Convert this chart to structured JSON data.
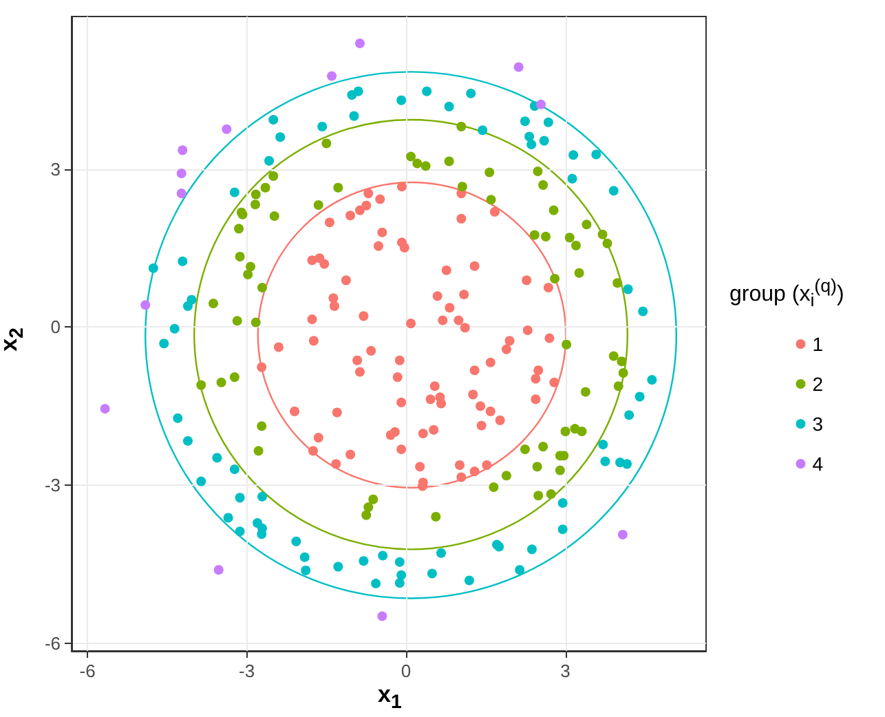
{
  "chart_data": {
    "type": "scatter",
    "xlabel": "x$_{1}$",
    "ylabel": "x$_{2}$",
    "legend_title": "group (x$_{i}$$^{(q)}$)",
    "xlim": [
      -6.3,
      5.65
    ],
    "ylim": [
      -6.15,
      5.9
    ],
    "xticks": [
      -6,
      -3,
      0,
      3
    ],
    "yticks": [
      -6,
      -3,
      0,
      3
    ],
    "grid": true,
    "legend": "right",
    "marker": "circle",
    "series": [
      {
        "name": "1",
        "color": "#f8766d",
        "x": [
          -0.71,
          -0.49,
          -0.75,
          -0.87,
          -1.05,
          -1.44,
          -0.45,
          -0.52,
          -1.77,
          -1.63,
          -1.54,
          -1.13,
          -1.37,
          -1.35,
          -0.08,
          1.04,
          1.67,
          1.04,
          -0.08,
          -0.03,
          0.76,
          1.29,
          2.27,
          2.68,
          0.59,
          1.09,
          0.82,
          -1.77,
          -0.8,
          -1.74,
          -2.4,
          -0.92,
          -0.66,
          -0.87,
          -2.72,
          -2.1,
          -1.3,
          -1.65,
          -1.75,
          -1.05,
          -1.32,
          -0.29,
          0.09,
          0.69,
          0.99,
          1.11,
          2.29,
          2.7,
          1.95,
          1.89,
          1.59,
          -0.12,
          -0.16,
          0.54,
          1.29,
          2.49,
          2.44,
          2.79,
          1.26,
          0.46,
          0.64,
          0.66,
          -0.09,
          2.44,
          1.4,
          1.59,
          1.77,
          1.42,
          -0.21,
          0.32,
          0.52,
          -0.09,
          0.26,
          1.01,
          1.29,
          1.52,
          1.04,
          0.32,
          0.31
        ],
        "values": [
          2.54,
          2.43,
          2.31,
          2.22,
          2.12,
          1.99,
          1.8,
          1.54,
          1.27,
          1.31,
          1.2,
          0.89,
          0.55,
          0.4,
          2.67,
          2.54,
          2.19,
          2.06,
          1.61,
          1.51,
          1.08,
          1.16,
          0.89,
          0.75,
          0.59,
          0.62,
          0.37,
          0.15,
          0.21,
          -0.26,
          -0.38,
          -0.63,
          -0.45,
          -0.85,
          -0.76,
          -1.6,
          -1.62,
          -2.1,
          -2.35,
          -2.42,
          -2.6,
          -2.05,
          0.07,
          0.13,
          0.13,
          -0.01,
          -0.06,
          -0.21,
          -0.26,
          -0.42,
          -0.67,
          -0.63,
          -0.95,
          -1.12,
          -0.82,
          -0.82,
          -0.98,
          -1.05,
          -1.28,
          -1.37,
          -1.33,
          -1.45,
          -1.43,
          -1.37,
          -1.5,
          -1.6,
          -1.77,
          -1.87,
          -1.99,
          -2.02,
          -1.95,
          -2.32,
          -2.65,
          -2.62,
          -2.74,
          -2.62,
          -2.85,
          -2.95,
          -3.02
        ]
      },
      {
        "name": "2",
        "color": "#7cae00",
        "x": [
          -1.5,
          -2.5,
          -2.65,
          -2.83,
          -2.84,
          -3.1,
          -3.08,
          -1.28,
          -1.65,
          -2.48,
          -3.15,
          -3.13,
          -2.93,
          -2.98,
          -2.71,
          -3.63,
          1.04,
          0.09,
          0.21,
          0.37,
          0.81,
          1.57,
          2.48,
          2.58,
          1.06,
          1.6,
          2.78,
          3.4,
          2.42,
          2.63,
          3.08,
          3.2,
          3.7,
          3.79,
          3.26,
          3.98,
          2.8,
          -3.18,
          -2.83,
          -3.86,
          -3.48,
          -3.23,
          -2.72,
          -2.78,
          -0.62,
          -0.71,
          -0.75,
          3.02,
          3.91,
          4.06,
          4.09,
          4.0,
          3.38,
          3.0,
          3.18,
          3.31,
          2.24,
          2.58,
          2.9,
          2.97,
          2.47,
          2.9,
          1.89,
          1.65,
          2.49,
          2.73,
          0.56
        ],
        "values": [
          3.49,
          2.87,
          2.65,
          2.52,
          2.33,
          2.18,
          2.14,
          2.65,
          2.32,
          2.11,
          1.87,
          1.34,
          1.15,
          1.0,
          0.75,
          0.45,
          3.81,
          3.24,
          3.11,
          3.06,
          3.15,
          2.94,
          2.96,
          2.7,
          2.67,
          2.42,
          2.22,
          1.95,
          1.75,
          1.72,
          1.7,
          1.55,
          1.76,
          1.59,
          1.03,
          0.84,
          0.92,
          0.12,
          0.09,
          -1.1,
          -1.05,
          -0.95,
          -1.88,
          -2.35,
          -3.27,
          -3.42,
          -3.57,
          -0.33,
          -0.55,
          -0.65,
          -0.87,
          -1.12,
          -1.23,
          -1.98,
          -1.93,
          -1.98,
          -2.32,
          -2.27,
          -2.44,
          -2.44,
          -2.65,
          -2.72,
          -2.82,
          -3.04,
          -3.2,
          -3.17,
          -3.6
        ]
      },
      {
        "name": "3",
        "color": "#00bfc4",
        "x": [
          -1.02,
          -0.9,
          -0.98,
          -2.5,
          -1.58,
          -2.37,
          -2.58,
          -3.23,
          -4.76,
          -4.21,
          -4.04,
          -4.11,
          -0.09,
          0.39,
          0.81,
          1.22,
          1.44,
          2.42,
          2.24,
          2.68,
          2.32,
          2.36,
          2.6,
          3.15,
          3.58,
          3.13,
          3.91,
          4.18,
          4.46,
          -4.36,
          -4.56,
          -4.3,
          -4.11,
          -3.56,
          -3.23,
          -3.86,
          -3.13,
          -2.71,
          -3.35,
          -3.13,
          -2.8,
          -2.71,
          -2.72,
          -2.07,
          -1.91,
          -1.89,
          -1.28,
          -0.8,
          -0.44,
          -0.57,
          4.63,
          4.4,
          4.2,
          3.71,
          3.75,
          4.03,
          4.16,
          2.95,
          2.95,
          1.71,
          1.75,
          2.37,
          0.66,
          -0.12,
          -0.09,
          -0.12,
          0.49,
          1.19,
          2.14
        ],
        "values": [
          4.41,
          4.48,
          4.01,
          3.94,
          3.81,
          3.61,
          3.16,
          2.56,
          1.12,
          1.25,
          0.52,
          0.4,
          4.31,
          4.48,
          4.19,
          4.44,
          3.74,
          4.2,
          3.91,
          3.89,
          3.62,
          3.47,
          3.54,
          3.27,
          3.28,
          2.82,
          2.59,
          0.72,
          0.3,
          -0.03,
          -0.31,
          -1.73,
          -2.16,
          -2.48,
          -2.7,
          -2.93,
          -3.24,
          -3.22,
          -3.62,
          -3.88,
          -3.72,
          -3.82,
          -3.93,
          -4.07,
          -4.37,
          -4.62,
          -4.55,
          -4.44,
          -4.34,
          -4.87,
          -1.0,
          -1.32,
          -1.67,
          -2.23,
          -2.55,
          -2.57,
          -2.6,
          -3.34,
          -3.84,
          -4.13,
          -4.17,
          -4.22,
          -4.29,
          -4.46,
          -4.71,
          -4.86,
          -4.68,
          -4.81,
          -4.61
        ]
      },
      {
        "name": "4",
        "color": "#c77cff",
        "x": [
          -0.87,
          -1.4,
          -3.38,
          -4.21,
          -4.23,
          -4.23,
          -4.91,
          2.12,
          2.54,
          -5.67,
          -3.53,
          -0.45,
          4.08
        ],
        "values": [
          5.39,
          4.77,
          3.76,
          3.36,
          2.92,
          2.54,
          0.42,
          4.94,
          4.23,
          -1.55,
          -4.61,
          -5.49,
          -3.94
        ]
      }
    ]
  }
}
